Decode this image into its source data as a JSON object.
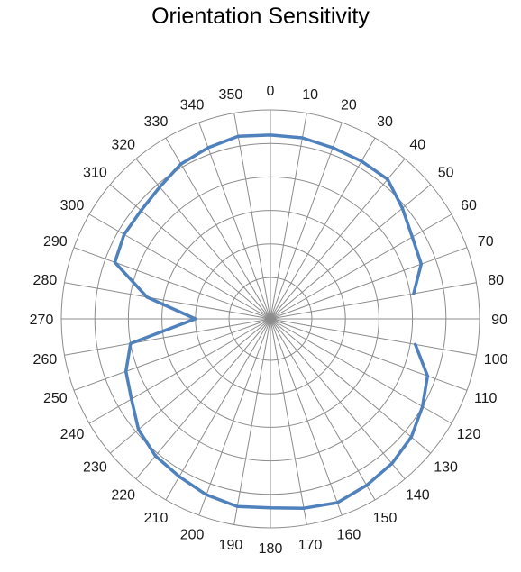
{
  "chart_data": {
    "type": "radar",
    "title": "Orientation Sensitivity",
    "angles": [
      0,
      10,
      20,
      30,
      40,
      50,
      60,
      70,
      80,
      90,
      100,
      110,
      120,
      130,
      140,
      150,
      160,
      170,
      180,
      190,
      200,
      210,
      220,
      230,
      240,
      250,
      260,
      270,
      280,
      290,
      300,
      310,
      320,
      330,
      340,
      350
    ],
    "angle_labels": [
      "0",
      "10",
      "20",
      "30",
      "40",
      "50",
      "60",
      "70",
      "80",
      "90",
      "100",
      "110",
      "120",
      "130",
      "140",
      "150",
      "160",
      "170",
      "180",
      "190",
      "200",
      "210",
      "220",
      "230",
      "240",
      "250",
      "260",
      "270",
      "280",
      "290",
      "300",
      "310",
      "320",
      "330",
      "340",
      "350"
    ],
    "series": [
      {
        "color": "#4f81bd",
        "values": [
          0.85,
          0.85,
          0.84,
          0.84,
          0.84,
          0.78,
          0.73,
          0.71,
          0.62,
          null,
          0.63,
          0.75,
          0.8,
          0.85,
          0.88,
          0.9,
          0.92,
          0.9,
          0.88,
          0.89,
          0.87,
          0.84,
          0.82,
          0.78,
          0.71,
          0.67,
          0.6,
          0.2,
          0.5,
          0.74,
          0.76,
          0.76,
          0.78,
          0.82,
          0.84,
          0.86
        ]
      }
    ],
    "rlim": [
      0,
      1
    ],
    "radial_rings": 5,
    "grid": true,
    "legend": "none"
  }
}
